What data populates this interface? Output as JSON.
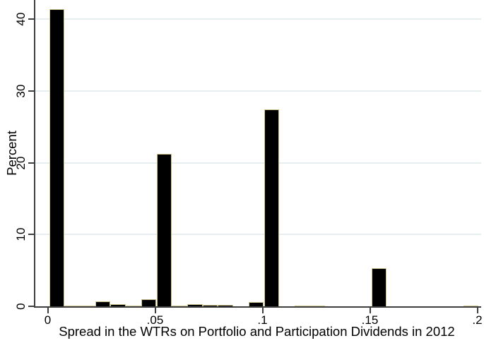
{
  "figure": {
    "background": "#ffffff"
  },
  "chart_data": {
    "type": "bar",
    "subtype": "histogram",
    "title": "",
    "xlabel": "Spread in the WTRs on Portfolio and Participation Dividends in 2012",
    "ylabel": "Percent",
    "xlim": [
      0,
      0.2
    ],
    "ylim": [
      0,
      42.7
    ],
    "grid": "horizontal-only",
    "legend": "none",
    "bin_width": 0.0071429,
    "x_ticks": [
      {
        "value": 0,
        "label": "0"
      },
      {
        "value": 0.05,
        "label": ".05"
      },
      {
        "value": 0.1,
        "label": ".1"
      },
      {
        "value": 0.15,
        "label": ".15"
      },
      {
        "value": 0.2,
        "label": ".2"
      }
    ],
    "y_ticks": [
      {
        "value": 0,
        "label": "0"
      },
      {
        "value": 10,
        "label": "10"
      },
      {
        "value": 20,
        "label": "20"
      },
      {
        "value": 30,
        "label": "30"
      },
      {
        "value": 40,
        "label": "40"
      }
    ],
    "bars": [
      {
        "x": 0.0,
        "percent": 41.4
      },
      {
        "x": 0.0071429,
        "percent": 0.08
      },
      {
        "x": 0.0142857,
        "percent": 0.12
      },
      {
        "x": 0.0214286,
        "percent": 0.7
      },
      {
        "x": 0.0285714,
        "percent": 0.3
      },
      {
        "x": 0.0357143,
        "percent": 0.1
      },
      {
        "x": 0.0428571,
        "percent": 1.0
      },
      {
        "x": 0.05,
        "percent": 21.2
      },
      {
        "x": 0.0571429,
        "percent": 0.12
      },
      {
        "x": 0.0642857,
        "percent": 0.25
      },
      {
        "x": 0.0714286,
        "percent": 0.2
      },
      {
        "x": 0.0785714,
        "percent": 0.2
      },
      {
        "x": 0.0928571,
        "percent": 0.6
      },
      {
        "x": 0.1,
        "percent": 27.4
      },
      {
        "x": 0.1142857,
        "percent": 0.1
      },
      {
        "x": 0.1214286,
        "percent": 0.1
      },
      {
        "x": 0.15,
        "percent": 5.3
      },
      {
        "x": 0.1928571,
        "percent": 0.1
      }
    ],
    "colors": {
      "bar_fill": "#000000",
      "bar_outline": "#cfc68e",
      "gridline": "#e7eef0",
      "axis": "#3f3f3f",
      "text": "#000000",
      "background": "#ffffff"
    }
  }
}
